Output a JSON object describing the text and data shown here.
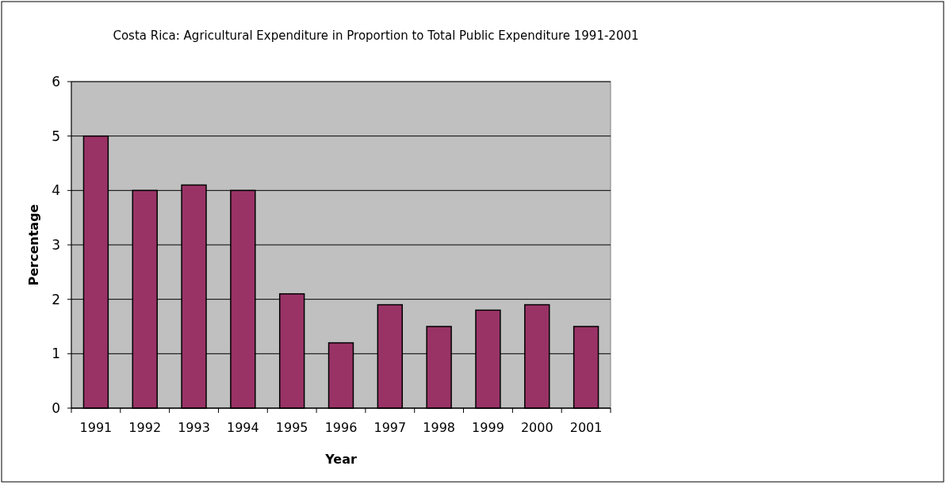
{
  "chart_data": {
    "type": "bar",
    "title": "Costa Rica: Agricultural Expenditure in Proportion to Total Public Expenditure 1991-2001",
    "xlabel": "Year",
    "ylabel": "Percentage",
    "categories": [
      "1991",
      "1992",
      "1993",
      "1994",
      "1995",
      "1996",
      "1997",
      "1998",
      "1999",
      "2000",
      "2001"
    ],
    "values": [
      5,
      4,
      4.1,
      4,
      2.1,
      1.2,
      1.9,
      1.5,
      1.8,
      1.9,
      1.5
    ],
    "color": "#993366",
    "ylim": [
      0,
      6
    ],
    "yticks": [
      0,
      1,
      2,
      3,
      4,
      5,
      6
    ],
    "grid": "y"
  }
}
